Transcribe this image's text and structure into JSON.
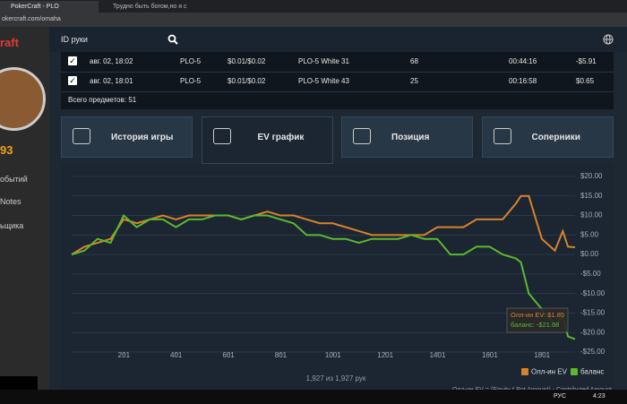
{
  "browser": {
    "tabs": [
      "PokerCraft - PLO",
      "Трудно быть богом,но я с"
    ],
    "url": "okercraft.com/omaha"
  },
  "sidebar": {
    "brand": "raft",
    "score": "93",
    "menu": [
      "обытий",
      "Notes",
      "ьщика"
    ]
  },
  "search": {
    "placeholder": "ID руки"
  },
  "table": {
    "rows": [
      [
        "авг. 02, 18:02",
        "PLO-5",
        "$0.01/$0.02",
        "PLO-5 White 31",
        "68",
        "00:44:16",
        "-$5.91"
      ],
      [
        "авг. 02, 18:01",
        "PLO-5",
        "$0.01/$0.02",
        "PLO-5 White 43",
        "25",
        "00:16:58",
        "$0.65"
      ]
    ],
    "total": "Всего предметов: 51"
  },
  "tabs": [
    "История игры",
    "EV график",
    "Позиция",
    "Соперники"
  ],
  "chart_data": {
    "type": "line",
    "x": [
      1,
      50,
      100,
      150,
      200,
      250,
      300,
      350,
      400,
      450,
      500,
      550,
      600,
      650,
      700,
      750,
      800,
      850,
      900,
      950,
      1000,
      1050,
      1100,
      1150,
      1200,
      1250,
      1300,
      1350,
      1400,
      1450,
      1500,
      1550,
      1600,
      1650,
      1700,
      1720,
      1750,
      1800,
      1850,
      1880,
      1900,
      1927
    ],
    "series": [
      {
        "name": "Олл-ин EV",
        "color": "#d9822b",
        "values": [
          0,
          2,
          3,
          4,
          9,
          8,
          9,
          10,
          9,
          10,
          10,
          10,
          10,
          9,
          10,
          11,
          10,
          10,
          9,
          8,
          8,
          7,
          6,
          5,
          5,
          5,
          5,
          5,
          7,
          7,
          7,
          9,
          9,
          9,
          13,
          15,
          15,
          4,
          1,
          6,
          2,
          1.85
        ]
      },
      {
        "name": "баланс",
        "color": "#5cb82e",
        "values": [
          0,
          1,
          4,
          3,
          10,
          7,
          9,
          9,
          7,
          9,
          9,
          10,
          10,
          9,
          10,
          10,
          9,
          8,
          5,
          5,
          4,
          4,
          3,
          4,
          4,
          4,
          5,
          4,
          4,
          0,
          0,
          2,
          2,
          0,
          -1,
          -2,
          -10,
          -14,
          -18,
          -16,
          -21,
          -21.68
        ]
      }
    ],
    "xlim": [
      1,
      1927
    ],
    "ylim": [
      -25,
      20
    ],
    "xticks": [
      201,
      401,
      601,
      801,
      1001,
      1201,
      1401,
      1601,
      1801
    ],
    "yticks": [
      {
        "value": 20,
        "label": "$20.00"
      },
      {
        "value": 15,
        "label": "$15.00"
      },
      {
        "value": 10,
        "label": "$10.00"
      },
      {
        "value": 5,
        "label": "$5.00"
      },
      {
        "value": 0,
        "label": "$0.00"
      },
      {
        "value": -5,
        "label": "-$5.00"
      },
      {
        "value": -10,
        "label": "-$10.00"
      },
      {
        "value": -15,
        "label": "-$15.00"
      },
      {
        "value": -20,
        "label": "-$20.00"
      },
      {
        "value": -25,
        "label": "-$25.00"
      }
    ],
    "grid": true,
    "legend": "bottom-right",
    "tooltip": [
      "Олл-ин EV: $1.85",
      "баланс: -$21.68"
    ],
    "hands": "1,927 из 1,927 рук",
    "note": "Олл-ин EV = (Equity * Pot Amount) - Contributed Amount"
  },
  "taskbar": {
    "lang": "РУС",
    "time": "4:23"
  }
}
